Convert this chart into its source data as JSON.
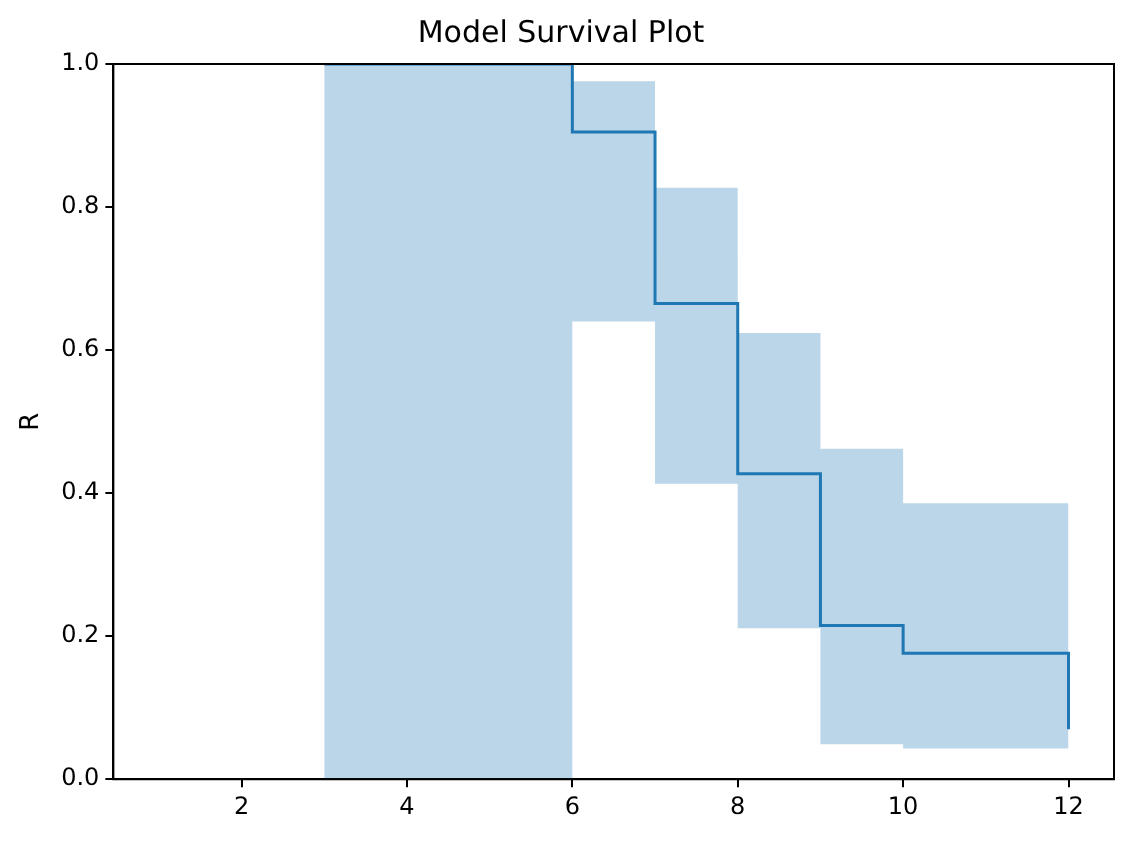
{
  "chart_data": {
    "type": "step",
    "title": "Model Survival Plot",
    "ylabel": "R",
    "x": [
      3,
      6,
      7,
      8,
      9,
      10,
      12,
      12
    ],
    "series": [
      {
        "color": "#1f77b4",
        "values": [
          1.0,
          0.905,
          0.665,
          0.427,
          0.215,
          0.176,
          0.176,
          0.07
        ],
        "lower": [
          0,
          0.64,
          0.413,
          0.211,
          0.049,
          0.043,
          0.043,
          0.043
        ],
        "upper": [
          1,
          0.976,
          0.827,
          0.624,
          0.462,
          0.386,
          0.386,
          0.386
        ]
      }
    ],
    "xlim": [
      0.45,
      12.55
    ],
    "xticks": [
      2,
      4,
      6,
      8,
      10,
      12
    ],
    "ylim": [
      0,
      1
    ],
    "yticks": [
      {
        "value": 0,
        "label": "0.0"
      },
      {
        "value": 0.2,
        "label": "0.2"
      },
      {
        "value": 0.4,
        "label": "0.4"
      },
      {
        "value": 0.6,
        "label": "0.6"
      },
      {
        "value": 0.8,
        "label": "0.8"
      },
      {
        "value": 1,
        "label": "1.0"
      }
    ],
    "grid": false,
    "legend": false
  }
}
